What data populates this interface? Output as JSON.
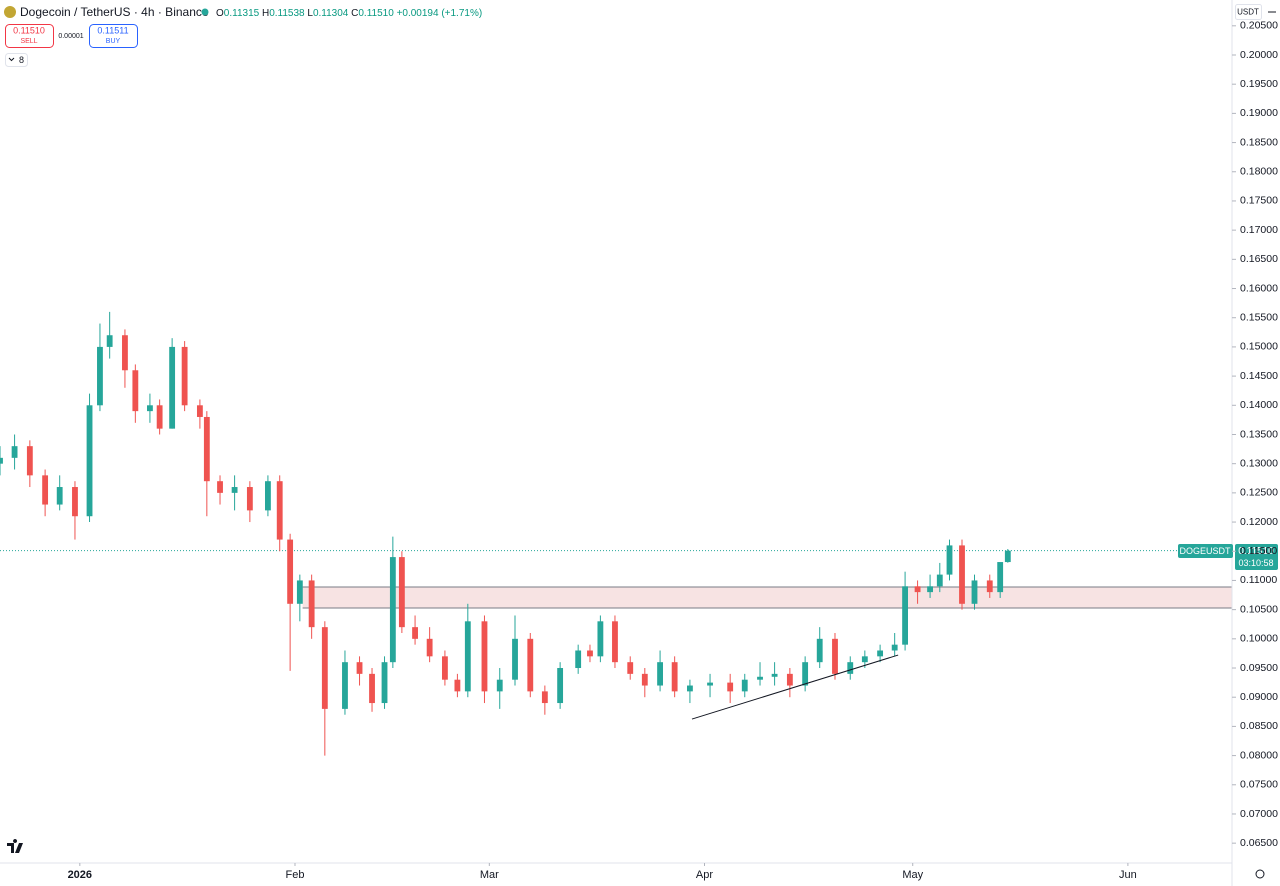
{
  "chart_data": {
    "type": "candlestick",
    "title": "Dogecoin / TetherUS · 4h · Binance",
    "ohlc_legend": [
      {
        "key": "O",
        "value": "0.11315"
      },
      {
        "key": "H",
        "value": "0.11538"
      },
      {
        "key": "L",
        "value": "0.11304"
      },
      {
        "key": "C",
        "value": "0.11510"
      }
    ],
    "change": "+0.00194 (+1.71%)",
    "trade": {
      "sell_price": "0.11510",
      "sell": "SELL",
      "spread": "0.00001",
      "buy_price": "0.11511",
      "buy": "BUY"
    },
    "indicator_count": "8",
    "currency": "USDT",
    "price_tag": {
      "symbol": "DOGEUSDT",
      "price": "0.11510",
      "countdown": "03:10:58"
    },
    "up_color": "#26a69a",
    "down_color": "#ef5350",
    "candles": {
      "x": [
        -11.5,
        -9.4,
        -7.2,
        -5.0,
        -2.9,
        -0.7,
        1.4,
        2.9,
        4.3,
        6.5,
        8.0,
        10.1,
        11.5,
        13.3,
        15.1,
        17.3,
        18.3,
        20.2,
        22.3,
        24.5,
        27.1,
        28.8,
        30.3,
        31.7,
        33.4,
        35.3,
        38.2,
        40.3,
        42.1,
        43.9,
        45.1,
        46.4,
        48.3,
        50.4,
        52.6,
        54.4,
        55.9,
        58.3,
        60.5,
        62.7,
        64.9,
        67.0,
        69.2,
        71.8,
        73.5,
        75.0,
        77.1,
        79.3,
        81.4,
        83.6,
        85.7,
        87.9,
        90.8,
        93.7,
        95.8,
        98.0,
        100.1,
        102.3,
        104.5,
        106.6,
        108.8,
        111.0,
        113.1,
        115.3,
        117.4,
        118.9,
        120.7,
        122.5,
        123.9,
        125.3,
        127.1,
        128.9,
        131.1,
        132.6,
        133.7
      ],
      "open": [
        0.13,
        0.131,
        0.133,
        0.128,
        0.123,
        0.126,
        0.121,
        0.14,
        0.15,
        0.152,
        0.146,
        0.139,
        0.14,
        0.136,
        0.15,
        0.14,
        0.138,
        0.127,
        0.125,
        0.126,
        0.122,
        0.127,
        0.117,
        0.106,
        0.11,
        0.102,
        0.088,
        0.096,
        0.094,
        0.089,
        0.096,
        0.114,
        0.102,
        0.1,
        0.097,
        0.093,
        0.091,
        0.103,
        0.091,
        0.093,
        0.1,
        0.091,
        0.089,
        0.095,
        0.098,
        0.097,
        0.103,
        0.096,
        0.094,
        0.092,
        0.096,
        0.091,
        0.092,
        0.0925,
        0.091,
        0.093,
        0.0935,
        0.094,
        0.092,
        0.096,
        0.1,
        0.094,
        0.096,
        0.097,
        0.098,
        0.099,
        0.109,
        0.108,
        0.109,
        0.111,
        0.116,
        0.106,
        0.11,
        0.108,
        0.11315
      ],
      "high": [
        0.133,
        0.135,
        0.134,
        0.129,
        0.128,
        0.127,
        0.142,
        0.154,
        0.156,
        0.153,
        0.147,
        0.142,
        0.141,
        0.1515,
        0.151,
        0.141,
        0.139,
        0.128,
        0.128,
        0.127,
        0.128,
        0.128,
        0.118,
        0.111,
        0.111,
        0.103,
        0.098,
        0.097,
        0.095,
        0.097,
        0.1175,
        0.115,
        0.104,
        0.102,
        0.098,
        0.094,
        0.106,
        0.104,
        0.095,
        0.104,
        0.101,
        0.092,
        0.096,
        0.099,
        0.099,
        0.104,
        0.104,
        0.097,
        0.095,
        0.098,
        0.097,
        0.093,
        0.094,
        0.094,
        0.094,
        0.096,
        0.096,
        0.095,
        0.097,
        0.102,
        0.101,
        0.097,
        0.098,
        0.099,
        0.101,
        0.1115,
        0.11,
        0.111,
        0.113,
        0.117,
        0.117,
        0.111,
        0.111,
        0.113,
        0.11538
      ],
      "low": [
        0.128,
        0.129,
        0.126,
        0.121,
        0.122,
        0.117,
        0.12,
        0.139,
        0.148,
        0.143,
        0.137,
        0.137,
        0.135,
        0.136,
        0.139,
        0.136,
        0.121,
        0.123,
        0.122,
        0.12,
        0.121,
        0.115,
        0.0945,
        0.103,
        0.1,
        0.08,
        0.087,
        0.092,
        0.0875,
        0.088,
        0.095,
        0.101,
        0.099,
        0.096,
        0.092,
        0.09,
        0.09,
        0.089,
        0.088,
        0.092,
        0.09,
        0.087,
        0.088,
        0.094,
        0.096,
        0.096,
        0.095,
        0.093,
        0.09,
        0.091,
        0.09,
        0.089,
        0.09,
        0.089,
        0.09,
        0.092,
        0.092,
        0.09,
        0.091,
        0.095,
        0.093,
        0.093,
        0.095,
        0.096,
        0.097,
        0.098,
        0.106,
        0.107,
        0.108,
        0.11,
        0.105,
        0.105,
        0.107,
        0.107,
        0.11304
      ],
      "close": [
        0.131,
        0.133,
        0.128,
        0.123,
        0.126,
        0.121,
        0.14,
        0.15,
        0.152,
        0.146,
        0.139,
        0.14,
        0.136,
        0.15,
        0.14,
        0.138,
        0.127,
        0.125,
        0.126,
        0.122,
        0.127,
        0.117,
        0.106,
        0.11,
        0.102,
        0.088,
        0.096,
        0.094,
        0.089,
        0.096,
        0.114,
        0.102,
        0.1,
        0.097,
        0.093,
        0.091,
        0.103,
        0.091,
        0.093,
        0.1,
        0.091,
        0.089,
        0.095,
        0.098,
        0.097,
        0.103,
        0.096,
        0.094,
        0.092,
        0.096,
        0.091,
        0.092,
        0.0925,
        0.091,
        0.093,
        0.0935,
        0.094,
        0.092,
        0.096,
        0.1,
        0.094,
        0.096,
        0.097,
        0.098,
        0.099,
        0.109,
        0.108,
        0.109,
        0.111,
        0.116,
        0.106,
        0.11,
        0.108,
        0.11315,
        0.1151
      ]
    },
    "zone": {
      "x_start": 32.1,
      "top": 0.10887,
      "bottom": 0.10527,
      "color": "#f7e3e3"
    },
    "trend_line": {
      "x": [
        88.2,
        117.9
      ],
      "y": [
        0.08626,
        0.09722
      ]
    },
    "xlim": [
      -11.5,
      166
    ],
    "ylim": [
      0.06126,
      0.20942
    ],
    "xticks": [
      {
        "value": 0,
        "label": "2026"
      },
      {
        "value": 31,
        "label": "Feb"
      },
      {
        "value": 59,
        "label": "Mar"
      },
      {
        "value": 90,
        "label": "Apr"
      },
      {
        "value": 120,
        "label": "May"
      },
      {
        "value": 151,
        "label": "Jun"
      }
    ],
    "yticks": [
      {
        "value": 0.065,
        "label": "0.06500"
      },
      {
        "value": 0.07,
        "label": "0.07000"
      },
      {
        "value": 0.075,
        "label": "0.07500"
      },
      {
        "value": 0.08,
        "label": "0.08000"
      },
      {
        "value": 0.085,
        "label": "0.08500"
      },
      {
        "value": 0.09,
        "label": "0.09000"
      },
      {
        "value": 0.095,
        "label": "0.09500"
      },
      {
        "value": 0.1,
        "label": "0.10000"
      },
      {
        "value": 0.105,
        "label": "0.10500"
      },
      {
        "value": 0.11,
        "label": "0.11000"
      },
      {
        "value": 0.115,
        "label": "0.11500"
      },
      {
        "value": 0.12,
        "label": "0.12000"
      },
      {
        "value": 0.125,
        "label": "0.12500"
      },
      {
        "value": 0.13,
        "label": "0.13000"
      },
      {
        "value": 0.135,
        "label": "0.13500"
      },
      {
        "value": 0.14,
        "label": "0.14000"
      },
      {
        "value": 0.145,
        "label": "0.14500"
      },
      {
        "value": 0.15,
        "label": "0.15000"
      },
      {
        "value": 0.155,
        "label": "0.15500"
      },
      {
        "value": 0.16,
        "label": "0.16000"
      },
      {
        "value": 0.165,
        "label": "0.16500"
      },
      {
        "value": 0.17,
        "label": "0.17000"
      },
      {
        "value": 0.175,
        "label": "0.17500"
      },
      {
        "value": 0.18,
        "label": "0.18000"
      },
      {
        "value": 0.185,
        "label": "0.18500"
      },
      {
        "value": 0.19,
        "label": "0.19000"
      },
      {
        "value": 0.195,
        "label": "0.19500"
      },
      {
        "value": 0.2,
        "label": "0.20000"
      },
      {
        "value": 0.205,
        "label": "0.20500"
      }
    ],
    "grid": false
  }
}
